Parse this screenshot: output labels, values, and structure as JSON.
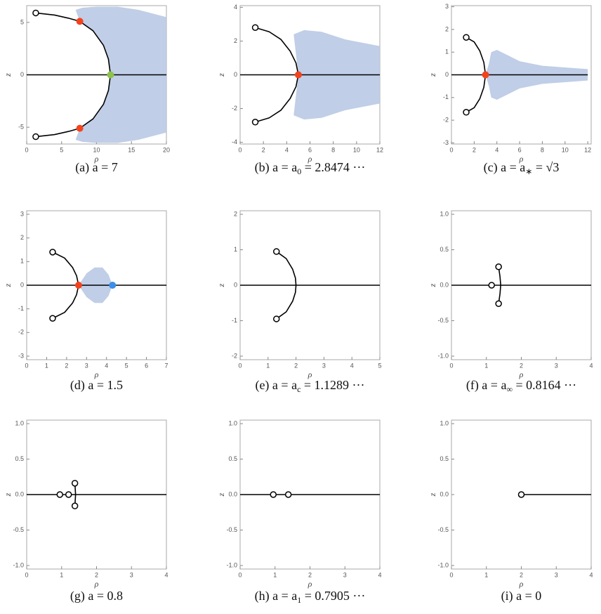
{
  "chart_data": [
    {
      "type": "line",
      "caption": {
        "prefix": "(a) a = 7"
      },
      "xlabel": "ρ",
      "ylabel": "z",
      "xlim": [
        0,
        20
      ],
      "ylim": [
        -6.6,
        6.6
      ],
      "xticks": [
        0,
        5,
        10,
        15,
        20
      ],
      "yticks": [
        -5,
        0,
        5
      ],
      "line": {
        "x": [
          0,
          20
        ],
        "y": [
          0,
          0
        ]
      },
      "curve": {
        "x": [
          1.3,
          4,
          6,
          7.6,
          9.5,
          11,
          11.7,
          12,
          11.7,
          11,
          9.5,
          7.6,
          6,
          4,
          1.3
        ],
        "y": [
          5.9,
          5.7,
          5.4,
          5.1,
          4.2,
          2.8,
          1.5,
          0,
          -1.5,
          -2.8,
          -4.2,
          -5.1,
          -5.4,
          -5.7,
          -5.9
        ]
      },
      "region": {
        "x": [
          7,
          8,
          10,
          13,
          16,
          20,
          20,
          16,
          13,
          10,
          8,
          7,
          7.6,
          9.5,
          11,
          11.7,
          12,
          11.7,
          11,
          9.5,
          7.6
        ],
        "y": [
          6.2,
          6.4,
          6.5,
          6.5,
          6.2,
          5.5,
          -5.5,
          -6.2,
          -6.5,
          -6.5,
          -6.4,
          -6.2,
          -5.1,
          -4.2,
          -2.8,
          -1.5,
          0,
          1.5,
          2.8,
          4.2,
          5.1
        ]
      },
      "region_color": "#b9c9e4",
      "open_points": {
        "x": [
          1.3,
          1.3
        ],
        "y": [
          5.9,
          -5.9
        ]
      },
      "dots": {
        "x": [
          7.6,
          7.6,
          12
        ],
        "y": [
          5.1,
          -5.1,
          0
        ],
        "colors": [
          "#f4431c",
          "#f4431c",
          "#8cc34b"
        ]
      }
    },
    {
      "type": "line",
      "caption": {
        "prefix": "(b) a = a",
        "sub": "0",
        "suffix": " = 2.8474 ···"
      },
      "xlabel": "ρ",
      "ylabel": "z",
      "xlim": [
        0,
        12
      ],
      "ylim": [
        -4.1,
        4.1
      ],
      "xticks": [
        0,
        2,
        4,
        6,
        8,
        10,
        12
      ],
      "yticks": [
        -4,
        -2,
        0,
        2,
        4
      ],
      "line": {
        "x": [
          0,
          12
        ],
        "y": [
          0,
          0
        ]
      },
      "curve": {
        "x": [
          1.3,
          2.5,
          3.5,
          4.3,
          4.8,
          5,
          4.8,
          4.3,
          3.5,
          2.5,
          1.3
        ],
        "y": [
          2.8,
          2.55,
          2.1,
          1.4,
          0.7,
          0,
          -0.7,
          -1.4,
          -2.1,
          -2.55,
          -2.8
        ]
      },
      "region": {
        "x": [
          4.6,
          5.5,
          7,
          9,
          12,
          12,
          9,
          7,
          5.5,
          4.6,
          4.8,
          5,
          4.8
        ],
        "y": [
          2.4,
          2.65,
          2.55,
          2.1,
          1.7,
          -1.7,
          -2.1,
          -2.55,
          -2.65,
          -2.4,
          -1.2,
          0,
          1.2
        ]
      },
      "region_color": "#b9c9e4",
      "open_points": {
        "x": [
          1.3,
          1.3
        ],
        "y": [
          2.8,
          -2.8
        ]
      },
      "dots": {
        "x": [
          5
        ],
        "y": [
          0
        ],
        "colors": [
          "#f4431c"
        ]
      }
    },
    {
      "type": "line",
      "caption": {
        "prefix": "(c) a = a",
        "sub": "∗",
        "suffix": " = √3"
      },
      "xlabel": "ρ",
      "ylabel": "z",
      "xlim": [
        0,
        12.3
      ],
      "ylim": [
        -3.05,
        3.05
      ],
      "xticks": [
        0,
        2,
        4,
        6,
        8,
        10,
        12
      ],
      "yticks": [
        -3,
        -2,
        -1,
        0,
        1,
        2,
        3
      ],
      "line": {
        "x": [
          0,
          12
        ],
        "y": [
          0,
          0
        ]
      },
      "curve": {
        "x": [
          1.3,
          2.0,
          2.5,
          2.85,
          3,
          2.85,
          2.5,
          2.0,
          1.3
        ],
        "y": [
          1.65,
          1.45,
          1.05,
          0.55,
          0,
          -0.55,
          -1.05,
          -1.45,
          -1.65
        ]
      },
      "region": {
        "x": [
          3.5,
          4,
          5,
          6,
          8,
          12,
          12,
          8,
          6,
          5,
          4,
          3.5,
          3.3,
          3,
          3.3
        ],
        "y": [
          1.0,
          1.1,
          0.85,
          0.6,
          0.4,
          0.25,
          -0.25,
          -0.4,
          -0.6,
          -0.85,
          -1.1,
          -1.0,
          -0.5,
          0,
          0.5
        ]
      },
      "region_color": "#b9c9e4",
      "open_points": {
        "x": [
          1.3,
          1.3
        ],
        "y": [
          1.65,
          -1.65
        ]
      },
      "dots": {
        "x": [
          3
        ],
        "y": [
          0
        ],
        "colors": [
          "#f4431c"
        ]
      }
    },
    {
      "type": "line",
      "caption": {
        "prefix": "(d) a = 1.5"
      },
      "xlabel": "ρ",
      "ylabel": "z",
      "xlim": [
        0,
        7
      ],
      "ylim": [
        -3.15,
        3.15
      ],
      "xticks": [
        0,
        1,
        2,
        3,
        4,
        5,
        6,
        7
      ],
      "yticks": [
        -3,
        -2,
        -1,
        0,
        1,
        2,
        3
      ],
      "line": {
        "x": [
          0,
          7
        ],
        "y": [
          0,
          0
        ]
      },
      "curve": {
        "x": [
          1.3,
          1.9,
          2.3,
          2.5,
          2.6,
          2.5,
          2.3,
          1.9,
          1.3
        ],
        "y": [
          1.4,
          1.15,
          0.75,
          0.4,
          0,
          -0.4,
          -0.75,
          -1.15,
          -1.4
        ]
      },
      "region": {
        "x": [
          2.6,
          3.0,
          3.4,
          3.8,
          4.1,
          4.3,
          4.1,
          3.8,
          3.4,
          3.0
        ],
        "y": [
          0,
          0.5,
          0.75,
          0.75,
          0.45,
          0,
          -0.45,
          -0.75,
          -0.75,
          -0.5
        ]
      },
      "region_color": "#b9c9e4",
      "open_points": {
        "x": [
          1.3,
          1.3
        ],
        "y": [
          1.4,
          -1.4
        ]
      },
      "dots": {
        "x": [
          2.6,
          4.3
        ],
        "y": [
          0,
          0
        ],
        "colors": [
          "#f4431c",
          "#3d8ee6"
        ]
      }
    },
    {
      "type": "line",
      "caption": {
        "prefix": "(e) a = a",
        "sub": "c",
        "suffix": " = 1.1289 ···"
      },
      "xlabel": "ρ",
      "ylabel": "z",
      "xlim": [
        0,
        5
      ],
      "ylim": [
        -2.1,
        2.1
      ],
      "xticks": [
        0,
        1,
        2,
        3,
        4,
        5
      ],
      "yticks": [
        -2,
        -1,
        0,
        1,
        2
      ],
      "line": {
        "x": [
          0,
          5
        ],
        "y": [
          0,
          0
        ]
      },
      "curve": {
        "x": [
          1.3,
          1.65,
          1.88,
          1.98,
          2,
          1.98,
          1.88,
          1.65,
          1.3
        ],
        "y": [
          0.95,
          0.75,
          0.45,
          0.2,
          0,
          -0.2,
          -0.45,
          -0.75,
          -0.95
        ]
      },
      "open_points": {
        "x": [
          1.3,
          1.3
        ],
        "y": [
          0.95,
          -0.95
        ]
      }
    },
    {
      "type": "line",
      "caption": {
        "prefix": "(f) a = a",
        "sub": "∞",
        "suffix": " = 0.8164 ···"
      },
      "xlabel": "ρ",
      "ylabel": "z",
      "xlim": [
        0,
        4
      ],
      "ylim": [
        -1.05,
        1.05
      ],
      "xticks": [
        0,
        1,
        2,
        3,
        4
      ],
      "yticks": [
        {
          "value": -1,
          "label": "-1.0"
        },
        {
          "value": -0.5,
          "label": "-0.5"
        },
        {
          "value": 0,
          "label": "0.0"
        },
        {
          "value": 0.5,
          "label": "0.5"
        },
        {
          "value": 1,
          "label": "1.0"
        }
      ],
      "line": {
        "x": [
          0,
          4
        ],
        "y": [
          0,
          0
        ]
      },
      "curve": {
        "x": [
          1.35,
          1.39,
          1.41,
          1.39,
          1.35
        ],
        "y": [
          0.26,
          0.12,
          0,
          -0.12,
          -0.26
        ]
      },
      "open_points": {
        "x": [
          1.15,
          1.35,
          1.35
        ],
        "y": [
          0,
          0.26,
          -0.26
        ]
      }
    },
    {
      "type": "line",
      "caption": {
        "prefix": "(g) a = 0.8"
      },
      "xlabel": "ρ",
      "ylabel": "z",
      "xlim": [
        0,
        4
      ],
      "ylim": [
        -1.05,
        1.05
      ],
      "xticks": [
        0,
        1,
        2,
        3,
        4
      ],
      "yticks": [
        {
          "value": -1,
          "label": "-1.0"
        },
        {
          "value": -0.5,
          "label": "-0.5"
        },
        {
          "value": 0,
          "label": "0.0"
        },
        {
          "value": 0.5,
          "label": "0.5"
        },
        {
          "value": 1,
          "label": "1.0"
        }
      ],
      "line": {
        "x": [
          0,
          4
        ],
        "y": [
          0,
          0
        ]
      },
      "curve": {
        "x": [
          1.38,
          1.4,
          1.38
        ],
        "y": [
          0.16,
          0,
          -0.16
        ]
      },
      "open_points": {
        "x": [
          0.95,
          1.2,
          1.38,
          1.38
        ],
        "y": [
          0,
          0,
          0.16,
          -0.16
        ]
      }
    },
    {
      "type": "line",
      "caption": {
        "prefix": "(h) a = a",
        "sub": "1",
        "suffix": " = 0.7905 ···"
      },
      "xlabel": "ρ",
      "ylabel": "z",
      "xlim": [
        0,
        4
      ],
      "ylim": [
        -1.05,
        1.05
      ],
      "xticks": [
        0,
        1,
        2,
        3,
        4
      ],
      "yticks": [
        {
          "value": -1,
          "label": "-1.0"
        },
        {
          "value": -0.5,
          "label": "-0.5"
        },
        {
          "value": 0,
          "label": "0.0"
        },
        {
          "value": 0.5,
          "label": "0.5"
        },
        {
          "value": 1,
          "label": "1.0"
        }
      ],
      "line": {
        "x": [
          0,
          4
        ],
        "y": [
          0,
          0
        ]
      },
      "open_points": {
        "x": [
          0.95,
          1.38
        ],
        "y": [
          0,
          0
        ]
      }
    },
    {
      "type": "line",
      "caption": {
        "prefix": "(i) a = 0"
      },
      "xlabel": "ρ",
      "ylabel": "z",
      "xlim": [
        0,
        4
      ],
      "ylim": [
        -1.05,
        1.05
      ],
      "xticks": [
        0,
        1,
        2,
        3,
        4
      ],
      "yticks": [
        {
          "value": -1,
          "label": "-1.0"
        },
        {
          "value": -0.5,
          "label": "-0.5"
        },
        {
          "value": 0,
          "label": "0.0"
        },
        {
          "value": 0.5,
          "label": "0.5"
        },
        {
          "value": 1,
          "label": "1.0"
        }
      ],
      "line": {
        "x": [
          2,
          4
        ],
        "y": [
          0,
          0
        ]
      },
      "open_points": {
        "x": [
          2
        ],
        "y": [
          0
        ]
      }
    }
  ]
}
